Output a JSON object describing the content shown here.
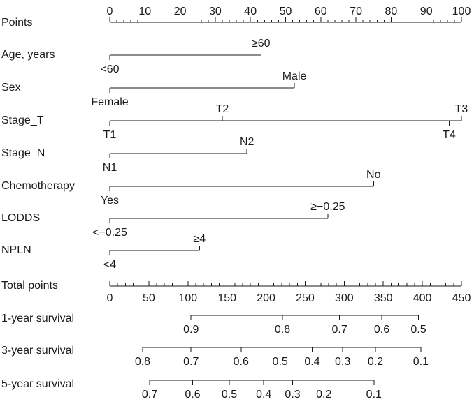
{
  "chart_data": {
    "type": "nomogram",
    "scales": {
      "points": {
        "label": "Points",
        "min": 0,
        "max": 100,
        "major_ticks": [
          0,
          10,
          20,
          30,
          40,
          50,
          60,
          70,
          80,
          90,
          100
        ],
        "minor_step": 2
      },
      "total": {
        "label": "Total points",
        "min": 0,
        "max": 450,
        "major_ticks": [
          0,
          50,
          100,
          150,
          200,
          250,
          300,
          350,
          400,
          450
        ],
        "minor_step": 10
      }
    },
    "variables": [
      {
        "label": "Age, years",
        "levels": [
          {
            "label": "<60",
            "points": 0,
            "pos": "below"
          },
          {
            "label": "≥60",
            "points": 43,
            "pos": "above"
          }
        ]
      },
      {
        "label": "Sex",
        "levels": [
          {
            "label": "Female",
            "points": 0,
            "pos": "below"
          },
          {
            "label": "Male",
            "points": 52.5,
            "pos": "above"
          }
        ]
      },
      {
        "label": "Stage_T",
        "levels": [
          {
            "label": "T1",
            "points": 0,
            "pos": "below"
          },
          {
            "label": "T2",
            "points": 32,
            "pos": "above"
          },
          {
            "label": "T4",
            "points": 96.5,
            "pos": "below"
          },
          {
            "label": "T3",
            "points": 100,
            "pos": "above"
          }
        ]
      },
      {
        "label": "Stage_N",
        "levels": [
          {
            "label": "N1",
            "points": 0,
            "pos": "below"
          },
          {
            "label": "N2",
            "points": 39,
            "pos": "above"
          }
        ]
      },
      {
        "label": "Chemotherapy",
        "levels": [
          {
            "label": "Yes",
            "points": 0,
            "pos": "below"
          },
          {
            "label": "No",
            "points": 75,
            "pos": "above"
          }
        ]
      },
      {
        "label": "LODDS",
        "levels": [
          {
            "label": "<−0.25",
            "points": 0,
            "pos": "below"
          },
          {
            "label": "≥−0.25",
            "points": 62,
            "pos": "above"
          }
        ]
      },
      {
        "label": "NPLN",
        "levels": [
          {
            "label": "<4",
            "points": 0,
            "pos": "below"
          },
          {
            "label": "≥4",
            "points": 25.5,
            "pos": "above"
          }
        ]
      }
    ],
    "survival": [
      {
        "label": "1-year survival",
        "ticks": [
          {
            "label": "0.9",
            "total": 104
          },
          {
            "label": "0.8",
            "total": 221
          },
          {
            "label": "0.7",
            "total": 294
          },
          {
            "label": "0.6",
            "total": 348
          },
          {
            "label": "0.5",
            "total": 395
          }
        ]
      },
      {
        "label": "3-year survival",
        "ticks": [
          {
            "label": "0.8",
            "total": 42
          },
          {
            "label": "0.7",
            "total": 104
          },
          {
            "label": "0.6",
            "total": 168
          },
          {
            "label": "0.5",
            "total": 218
          },
          {
            "label": "0.4",
            "total": 259
          },
          {
            "label": "0.3",
            "total": 298
          },
          {
            "label": "0.2",
            "total": 340
          },
          {
            "label": "0.1",
            "total": 398
          }
        ]
      },
      {
        "label": "5-year survival",
        "ticks": [
          {
            "label": "0.7",
            "total": 51
          },
          {
            "label": "0.6",
            "total": 106
          },
          {
            "label": "0.5",
            "total": 153
          },
          {
            "label": "0.4",
            "total": 197
          },
          {
            "label": "0.3",
            "total": 234
          },
          {
            "label": "0.2",
            "total": 274
          },
          {
            "label": "0.1",
            "total": 338
          }
        ]
      }
    ]
  }
}
